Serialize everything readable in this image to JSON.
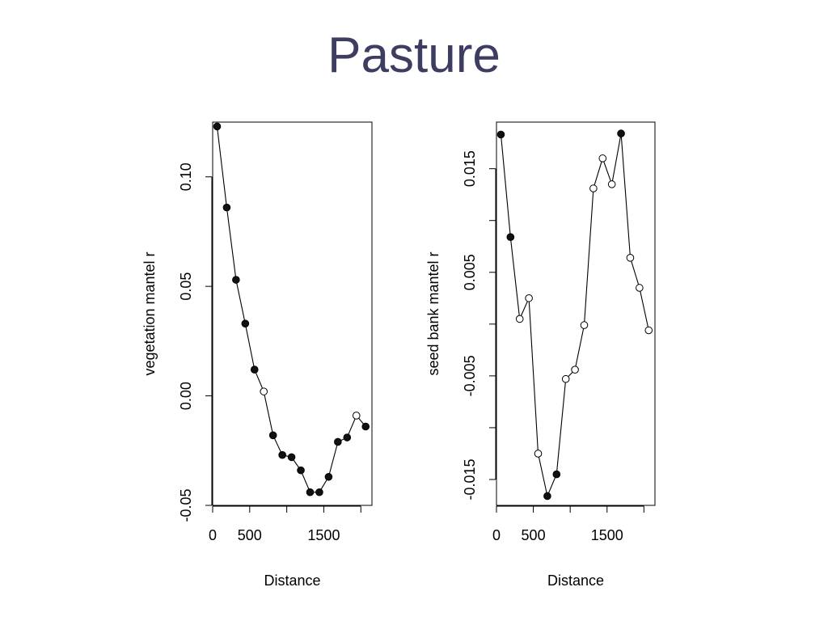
{
  "slide": {
    "title": "Pasture"
  },
  "chart_data": [
    {
      "type": "line",
      "title": "",
      "xlabel": "Distance",
      "ylabel": "vegetation mantel r",
      "xlim": [
        0,
        2150
      ],
      "ylim": [
        -0.05,
        0.125
      ],
      "x_ticks": [
        0,
        500,
        1500
      ],
      "x_tick_labels": [
        "0",
        "500",
        "1500"
      ],
      "x_tick_marks": [
        0,
        500,
        1000,
        1500,
        2000
      ],
      "y_ticks": [
        -0.05,
        0.0,
        0.05,
        0.1
      ],
      "y_tick_labels": [
        "-0.05",
        "0.00",
        "0.05",
        "0.10"
      ],
      "grid": false,
      "legend": "none",
      "series": [
        {
          "x": [
            60,
            190,
            315,
            440,
            565,
            690,
            815,
            940,
            1065,
            1190,
            1315,
            1440,
            1565,
            1690,
            1815,
            1940,
            2065
          ],
          "y": [
            0.123,
            0.086,
            0.053,
            0.033,
            0.012,
            0.002,
            -0.018,
            -0.027,
            -0.028,
            -0.034,
            -0.044,
            -0.044,
            -0.037,
            -0.021,
            -0.019,
            -0.009,
            -0.014
          ],
          "significant": [
            true,
            true,
            true,
            true,
            true,
            false,
            true,
            true,
            true,
            true,
            true,
            true,
            true,
            true,
            true,
            false,
            true
          ]
        }
      ]
    },
    {
      "type": "line",
      "title": "",
      "xlabel": "Distance",
      "ylabel": "seed bank mantel r",
      "xlim": [
        0,
        2150
      ],
      "ylim": [
        -0.0175,
        0.0195
      ],
      "x_ticks": [
        0,
        500,
        1500
      ],
      "x_tick_labels": [
        "0",
        "500",
        "1500"
      ],
      "x_tick_marks": [
        0,
        500,
        1000,
        1500,
        2000
      ],
      "y_ticks": [
        -0.015,
        -0.005,
        0.005,
        0.015
      ],
      "y_tick_labels": [
        "-0.015",
        "-0.005",
        "0.005",
        "0.015"
      ],
      "y_tick_marks": [
        -0.015,
        -0.01,
        -0.005,
        0.0,
        0.005,
        0.01,
        0.015
      ],
      "grid": false,
      "legend": "none",
      "series": [
        {
          "x": [
            60,
            190,
            315,
            440,
            565,
            690,
            815,
            940,
            1065,
            1190,
            1315,
            1440,
            1565,
            1690,
            1815,
            1940,
            2065
          ],
          "y": [
            0.0183,
            0.0084,
            0.0005,
            0.0025,
            -0.0125,
            -0.0166,
            -0.0145,
            -0.0053,
            -0.0044,
            -0.0001,
            0.0131,
            0.016,
            0.0135,
            0.0184,
            0.0064,
            0.0035,
            -0.0006
          ],
          "significant": [
            true,
            true,
            false,
            false,
            false,
            true,
            true,
            false,
            false,
            false,
            false,
            false,
            false,
            true,
            false,
            false,
            false
          ]
        }
      ]
    }
  ]
}
